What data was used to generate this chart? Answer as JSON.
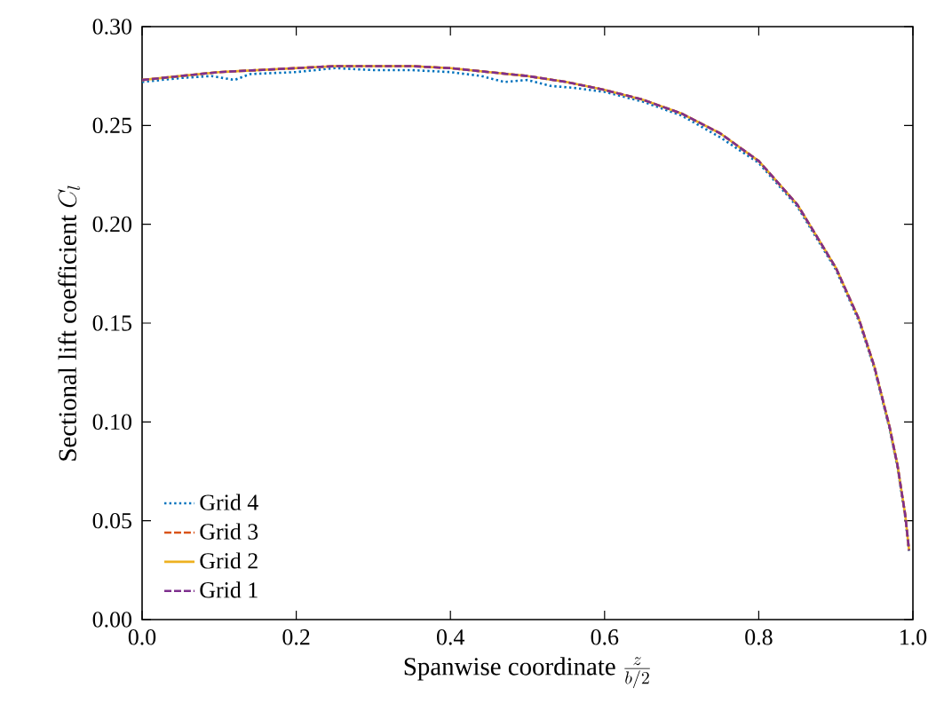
{
  "chart_data": {
    "type": "line",
    "xlabel": "\\mbox{Spanwise coordinate }\\frac{z}{b/2}",
    "ylabel": "\\mbox{Sectional lift coefficient }C_l",
    "xlim": [
      0,
      1
    ],
    "ylim": [
      0,
      0.3
    ],
    "xticks": [
      {
        "value": 0,
        "label": "0.0"
      },
      {
        "value": 0.2,
        "label": "0.2"
      },
      {
        "value": 0.4,
        "label": "0.4"
      },
      {
        "value": 0.6,
        "label": "0.6"
      },
      {
        "value": 0.8,
        "label": "0.8"
      },
      {
        "value": 1,
        "label": "1.0"
      }
    ],
    "yticks": [
      {
        "value": 0,
        "label": "0.00"
      },
      {
        "value": 0.05,
        "label": "0.05"
      },
      {
        "value": 0.1,
        "label": "0.10"
      },
      {
        "value": 0.15,
        "label": "0.15"
      },
      {
        "value": 0.2,
        "label": "0.20"
      },
      {
        "value": 0.25,
        "label": "0.25"
      },
      {
        "value": 0.3,
        "label": "0.30"
      }
    ],
    "legend": "bottom left",
    "marker": "none",
    "grid": false,
    "x": [
      0,
      0.05,
      0.1,
      0.15,
      0.2,
      0.25,
      0.3,
      0.35,
      0.4,
      0.45,
      0.5,
      0.55,
      0.6,
      0.65,
      0.7,
      0.75,
      0.8,
      0.85,
      0.9,
      0.93,
      0.95,
      0.97,
      0.98,
      0.99,
      0.995
    ],
    "series": [
      {
        "name": "Grid 4",
        "color": "#0072bd",
        "line_style": "dotted",
        "x": [
          0,
          0.05,
          0.09,
          0.12,
          0.14,
          0.2,
          0.25,
          0.3,
          0.35,
          0.4,
          0.44,
          0.47,
          0.5,
          0.53,
          0.56,
          0.6,
          0.65,
          0.7,
          0.75,
          0.8,
          0.85,
          0.9,
          0.93,
          0.95,
          0.97,
          0.98,
          0.99,
          0.995
        ],
        "values": [
          0.272,
          0.274,
          0.275,
          0.273,
          0.276,
          0.277,
          0.279,
          0.278,
          0.278,
          0.277,
          0.275,
          0.272,
          0.273,
          0.27,
          0.269,
          0.267,
          0.262,
          0.255,
          0.244,
          0.231,
          0.209,
          0.177,
          0.151,
          0.127,
          0.096,
          0.077,
          0.052,
          0.034
        ]
      },
      {
        "name": "Grid 3",
        "color": "#d95319",
        "line_style": "dashed",
        "values": [
          0.273,
          0.275,
          0.277,
          0.278,
          0.279,
          0.28,
          0.28,
          0.28,
          0.279,
          0.277,
          0.275,
          0.272,
          0.268,
          0.263,
          0.256,
          0.246,
          0.232,
          0.21,
          0.178,
          0.152,
          0.128,
          0.097,
          0.078,
          0.053,
          0.035
        ]
      },
      {
        "name": "Grid 2",
        "color": "#edb120",
        "line_style": "solid",
        "values": [
          0.273,
          0.275,
          0.277,
          0.278,
          0.279,
          0.28,
          0.28,
          0.28,
          0.279,
          0.277,
          0.275,
          0.272,
          0.268,
          0.263,
          0.256,
          0.246,
          0.232,
          0.21,
          0.178,
          0.152,
          0.128,
          0.097,
          0.078,
          0.053,
          0.035
        ]
      },
      {
        "name": "Grid 1",
        "color": "#7e2f8e",
        "line_style": "dashed",
        "values": [
          0.273,
          0.275,
          0.277,
          0.278,
          0.279,
          0.28,
          0.28,
          0.28,
          0.279,
          0.277,
          0.275,
          0.272,
          0.268,
          0.263,
          0.256,
          0.246,
          0.232,
          0.21,
          0.178,
          0.152,
          0.128,
          0.097,
          0.078,
          0.053,
          0.035
        ]
      }
    ]
  }
}
